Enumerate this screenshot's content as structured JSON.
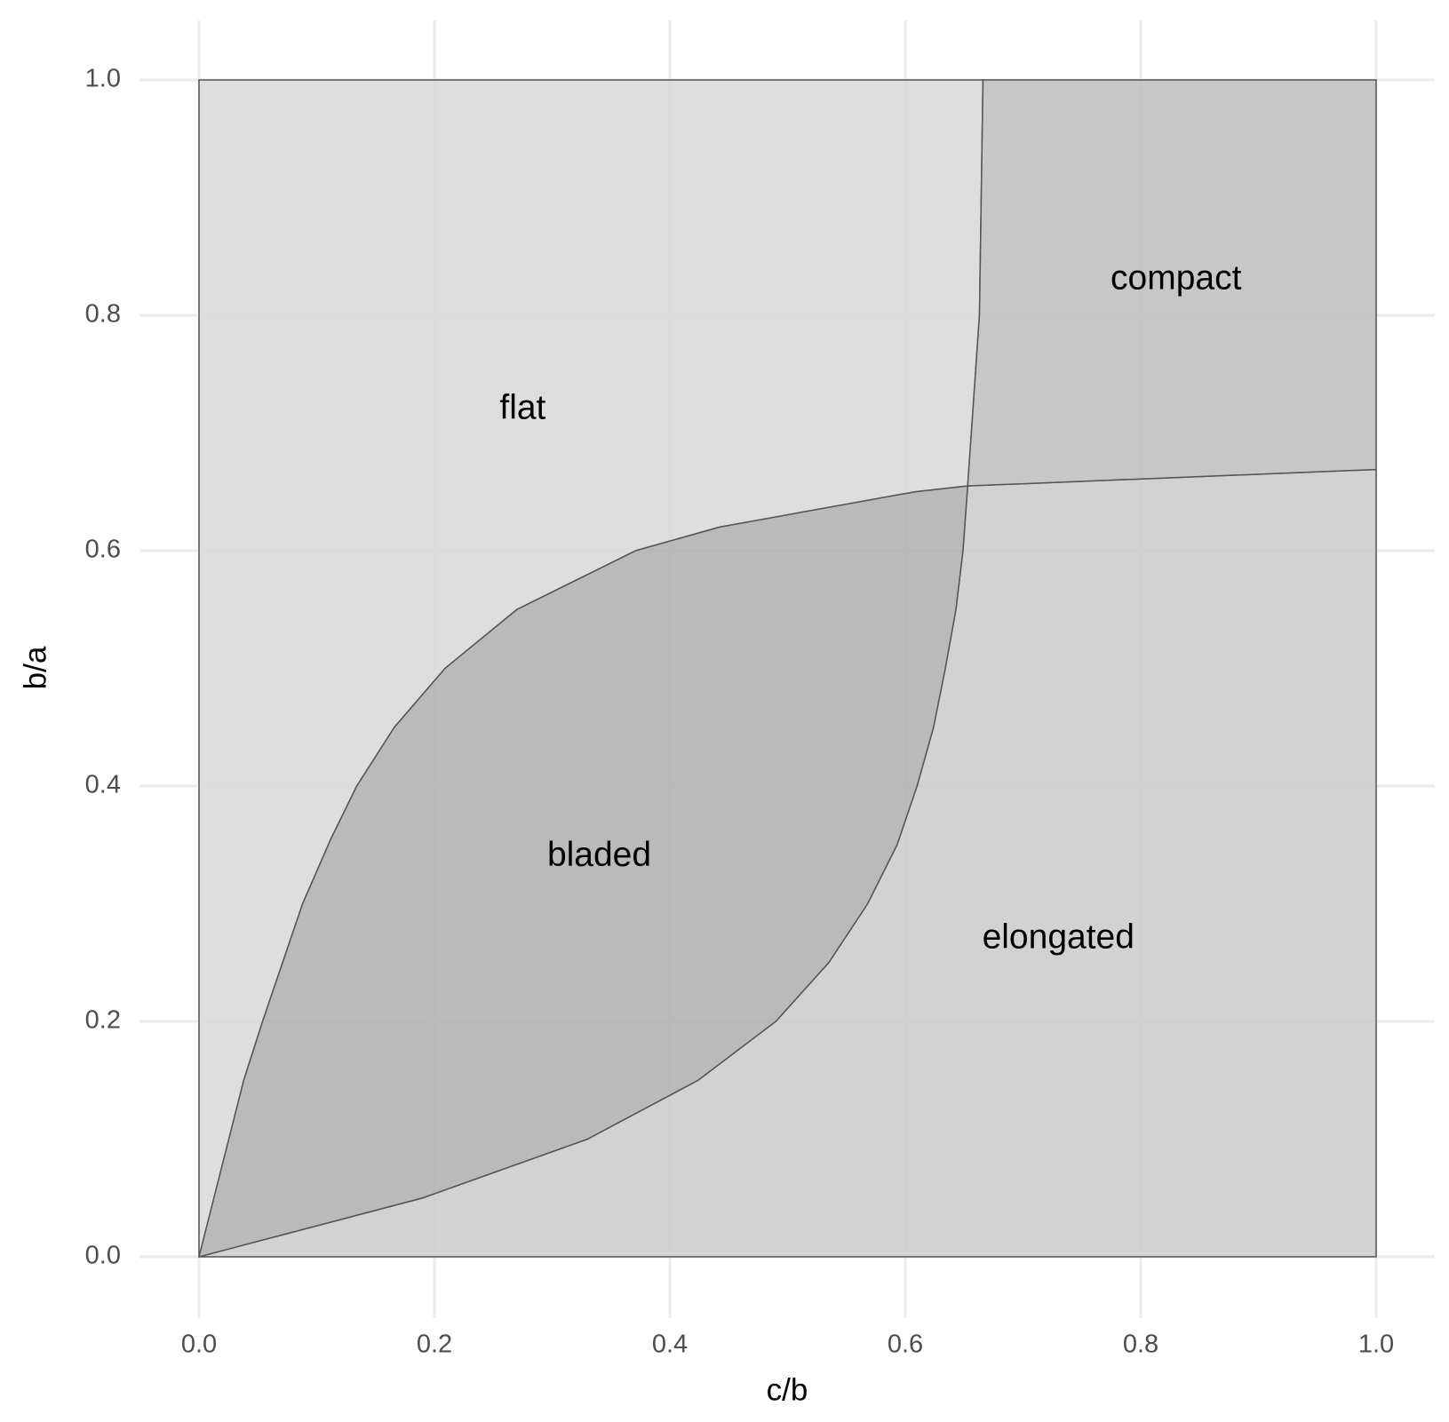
{
  "chart_data": {
    "type": "polygon",
    "xlabel": "c/b",
    "ylabel": "b/a",
    "xlim": [
      0,
      1
    ],
    "ylim": [
      0,
      1
    ],
    "xticks": [
      {
        "value": 0,
        "label": "0.0"
      },
      0.2,
      0.4,
      0.6,
      0.8,
      {
        "value": 1,
        "label": "1.0"
      }
    ],
    "yticks": [
      {
        "value": 0,
        "label": "0.0"
      },
      0.2,
      0.4,
      0.6,
      0.8,
      {
        "value": 1,
        "label": "1.0"
      }
    ],
    "grid": true,
    "series": [
      {
        "name": "flat",
        "color": "#d9d9d9",
        "x": [
          0,
          0,
          0.666,
          0.663,
          0.653,
          0.608,
          0.442,
          0.371,
          0.27,
          0.209,
          0.166,
          0.134,
          0.112,
          0.088,
          0.071,
          0.054,
          0.038
        ],
        "y": [
          0,
          1,
          1,
          0.8,
          0.655,
          0.65,
          0.62,
          0.6,
          0.55,
          0.5,
          0.45,
          0.4,
          0.355,
          0.3,
          0.25,
          0.2,
          0.15
        ],
        "label_x": 0.275,
        "label_y": 0.72
      },
      {
        "name": "elongated",
        "color": "#cccccc",
        "x": [
          0,
          1,
          1,
          0.653,
          0.649,
          0.643,
          0.634,
          0.624,
          0.61,
          0.593,
          0.568,
          0.535,
          0.49,
          0.424,
          0.33,
          0.19
        ],
        "y": [
          0,
          0,
          0.669,
          0.655,
          0.6,
          0.55,
          0.5,
          0.45,
          0.4,
          0.35,
          0.3,
          0.25,
          0.2,
          0.15,
          0.1,
          0.05
        ],
        "label_x": 0.73,
        "label_y": 0.27
      },
      {
        "name": "compact",
        "color": "#bfbfbf",
        "x": [
          0.653,
          0.663,
          0.666,
          1,
          1
        ],
        "y": [
          0.655,
          0.8,
          1,
          1,
          0.669
        ],
        "label_x": 0.83,
        "label_y": 0.83
      },
      {
        "name": "bladed",
        "color": "#b0b0b0",
        "x": [
          0,
          0.19,
          0.33,
          0.424,
          0.49,
          0.535,
          0.568,
          0.593,
          0.61,
          0.624,
          0.634,
          0.643,
          0.649,
          0.653,
          0.608,
          0.442,
          0.371,
          0.27,
          0.209,
          0.166,
          0.134,
          0.112,
          0.088,
          0.071,
          0.054,
          0.038
        ],
        "y": [
          0,
          0.05,
          0.1,
          0.15,
          0.2,
          0.25,
          0.3,
          0.35,
          0.4,
          0.45,
          0.5,
          0.55,
          0.6,
          0.655,
          0.65,
          0.62,
          0.6,
          0.55,
          0.5,
          0.45,
          0.4,
          0.355,
          0.3,
          0.25,
          0.2,
          0.15
        ],
        "label_x": 0.34,
        "label_y": 0.34
      }
    ]
  }
}
